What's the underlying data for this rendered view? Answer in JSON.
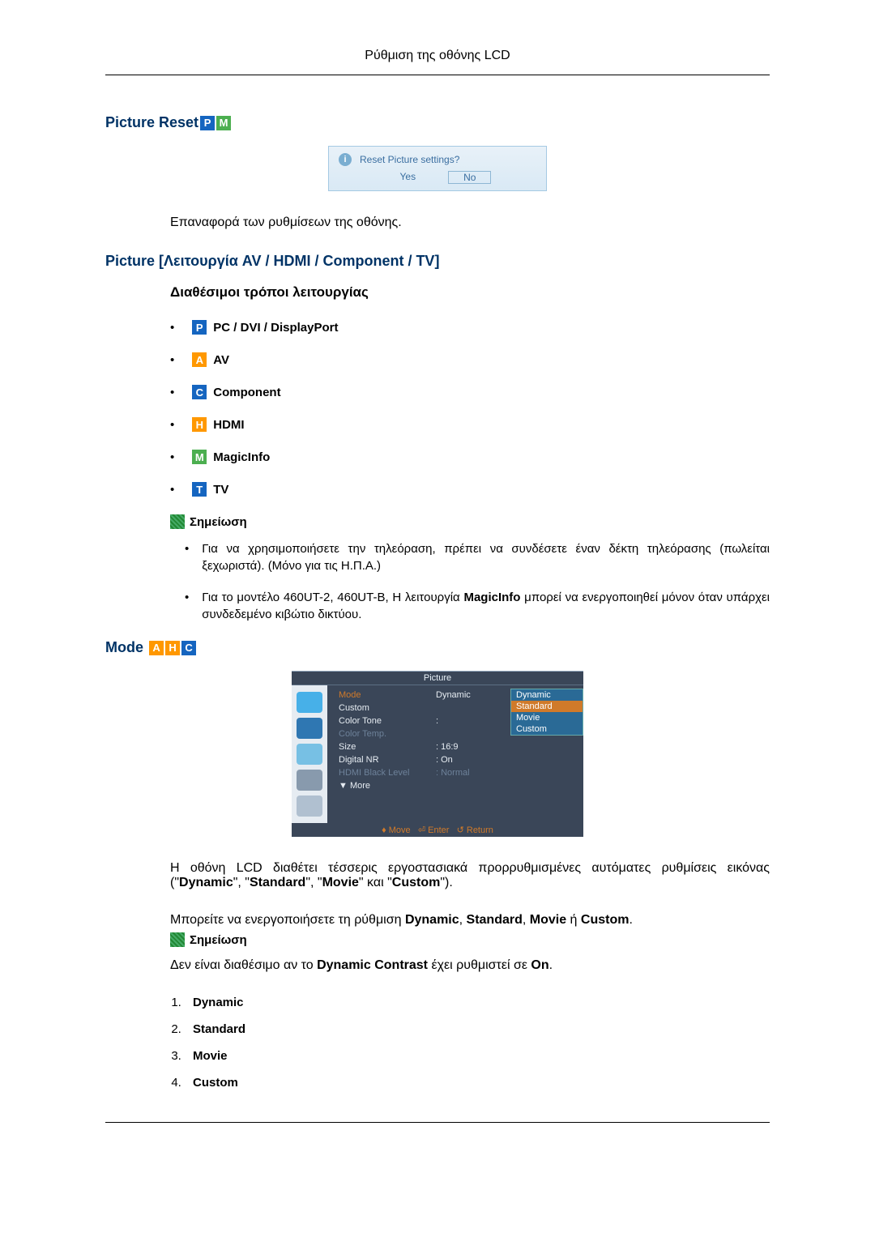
{
  "header": {
    "title": "Ρύθμιση της οθόνης LCD"
  },
  "picture_reset": {
    "title": "Picture Reset",
    "badges": [
      "P",
      "M"
    ],
    "dialog": {
      "text": "Reset Picture settings?",
      "yes": "Yes",
      "no": "No"
    },
    "body": "Επαναφορά των ρυθμίσεων της οθόνης."
  },
  "picture_mode_section": {
    "title": "Picture [Λειτουργία AV / HDMI / Component / TV]",
    "subtitle": "Διαθέσιμοι τρόποι λειτουργίας",
    "modes": [
      {
        "badge": "P",
        "label": "PC / DVI / DisplayPort"
      },
      {
        "badge": "A",
        "label": "AV"
      },
      {
        "badge": "C",
        "label": "Component"
      },
      {
        "badge": "H",
        "label": "HDMI"
      },
      {
        "badge": "M",
        "label": "MagicInfo"
      },
      {
        "badge": "T",
        "label": "TV"
      }
    ],
    "note_label": "Σημείωση",
    "notes": [
      "Για να χρησιμοποιήσετε την τηλεόραση, πρέπει να συνδέσετε έναν δέκτη τηλεόρασης (πωλείται ξεχωριστά). (Μόνο για τις Η.Π.Α.)",
      "Για το μοντέλο 460UT-2, 460UT-B, Η λειτουργία <b>MagicInfo</b> μπορεί να ενεργοποιηθεί μόνον όταν υπάρχει συνδεδεμένο κιβώτιο δικτύου."
    ]
  },
  "mode_section": {
    "title": "Mode",
    "badges": [
      "A",
      "H",
      "C"
    ],
    "osd": {
      "head": "Picture",
      "rows": [
        {
          "k": "Mode",
          "v": "Dynamic",
          "highlight": true
        },
        {
          "k": "Custom",
          "v": ""
        },
        {
          "k": "Color Tone",
          "v": ":"
        },
        {
          "k": "Color Temp.",
          "v": "",
          "dim": true
        },
        {
          "k": "Size",
          "v": ": 16:9"
        },
        {
          "k": "Digital NR",
          "v": ": On"
        },
        {
          "k": "HDMI Black Level",
          "v": ": Normal",
          "dim": true
        },
        {
          "k": "▼ More",
          "v": ""
        }
      ],
      "popup": [
        "Dynamic",
        "Standard",
        "Movie",
        "Custom"
      ],
      "popup_selected": 1,
      "foot_move": "Move",
      "foot_enter": "Enter",
      "foot_return": "Return",
      "icon_colors": [
        "#47b0e8",
        "#2f77b2",
        "#77c0e4",
        "#889aad",
        "#b0c0d0"
      ]
    },
    "body1_pre": "Η οθόνη LCD διαθέτει τέσσερις εργοστασιακά προρρυθμισμένες αυτόματες ρυθμίσεις εικόνας (\"",
    "body1_b1": "Dynamic",
    "body1_m1": "\", \"",
    "body1_b2": "Standard",
    "body1_m2": "\", \"",
    "body1_b3": "Movie",
    "body1_m3": "\" και \"",
    "body1_b4": "Custom",
    "body1_post": "\").",
    "body2_pre": "Μπορείτε να ενεργοποιήσετε τη ρύθμιση ",
    "body2_b1": "Dynamic",
    "body2_c1": ", ",
    "body2_b2": "Standard",
    "body2_c2": ", ",
    "body2_b3": "Movie",
    "body2_c3": " ή ",
    "body2_b4": "Custom",
    "body2_post": ".",
    "note_label": "Σημείωση",
    "note_body_pre": "Δεν είναι διαθέσιμο αν το ",
    "note_body_b": "Dynamic Contrast",
    "note_body_mid": " έχει ρυθμιστεί σε ",
    "note_body_on": "On",
    "note_body_post": ".",
    "list": [
      "Dynamic",
      "Standard",
      "Movie",
      "Custom"
    ]
  },
  "colors": {
    "heading": "#003366",
    "dialog_bg": "#e0edf7",
    "dialog_text": "#3a6ea0",
    "osd_bg": "#3a4658",
    "osd_accent": "#d07a2a",
    "osd_popup": "#2a6a96"
  }
}
